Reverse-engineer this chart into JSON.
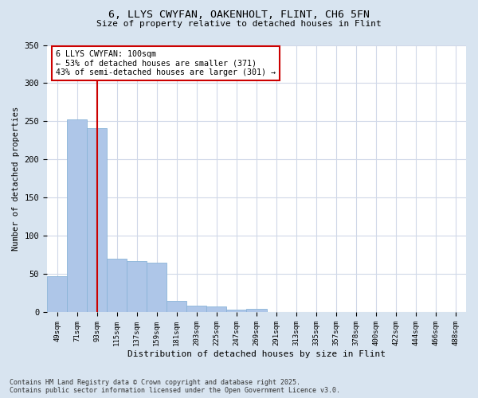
{
  "title1": "6, LLYS CWYFAN, OAKENHOLT, FLINT, CH6 5FN",
  "title2": "Size of property relative to detached houses in Flint",
  "xlabel": "Distribution of detached houses by size in Flint",
  "ylabel": "Number of detached properties",
  "categories": [
    "49sqm",
    "71sqm",
    "93sqm",
    "115sqm",
    "137sqm",
    "159sqm",
    "181sqm",
    "203sqm",
    "225sqm",
    "247sqm",
    "269sqm",
    "291sqm",
    "313sqm",
    "335sqm",
    "357sqm",
    "378sqm",
    "400sqm",
    "422sqm",
    "444sqm",
    "466sqm",
    "488sqm"
  ],
  "values": [
    47,
    253,
    241,
    70,
    67,
    65,
    15,
    9,
    8,
    4,
    5,
    1,
    1,
    0,
    0,
    0,
    0,
    0,
    0,
    0,
    0
  ],
  "bar_color": "#aec6e8",
  "bar_edge_color": "#8ab4d8",
  "vline_x": 2,
  "vline_color": "#cc0000",
  "annotation_text": "6 LLYS CWYFAN: 100sqm\n← 53% of detached houses are smaller (371)\n43% of semi-detached houses are larger (301) →",
  "annotation_box_color": "#ffffff",
  "annotation_box_edge": "#cc0000",
  "ylim": [
    0,
    350
  ],
  "yticks": [
    0,
    50,
    100,
    150,
    200,
    250,
    300,
    350
  ],
  "footnote": "Contains HM Land Registry data © Crown copyright and database right 2025.\nContains public sector information licensed under the Open Government Licence v3.0.",
  "fig_bg_color": "#d8e4f0",
  "plot_bg_color": "#ffffff"
}
